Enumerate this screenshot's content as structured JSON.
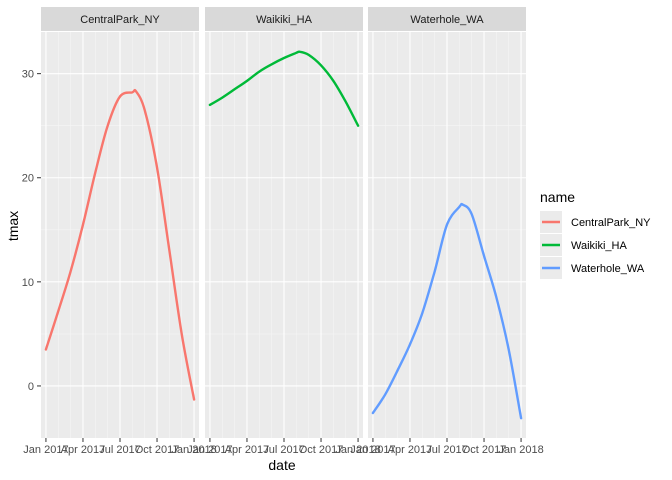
{
  "chart_data": {
    "type": "line",
    "xlabel": "date",
    "ylabel": "tmax",
    "ylim": [
      -5,
      34
    ],
    "y_ticks": [
      0,
      10,
      20,
      30
    ],
    "x_tick_labels": [
      "Jan 2017",
      "Apr 2017",
      "Jul 2017",
      "Oct 2017",
      "Jan 2018"
    ],
    "x_tick_months": [
      0,
      3,
      6,
      9,
      12
    ],
    "x_range_months": [
      -0.4,
      12.4
    ],
    "grid": true,
    "legend": {
      "title": "name",
      "placement": "right"
    },
    "facets": [
      "CentralPark_NY",
      "Waikiki_HA",
      "Waterhole_WA"
    ],
    "series": [
      {
        "name": "CentralPark_NY",
        "color": "#F8766D",
        "x_months": [
          0,
          1,
          2,
          3,
          4,
          5,
          6,
          7,
          7.3,
          8,
          9,
          10,
          11,
          12
        ],
        "values": [
          3.5,
          7.2,
          11.0,
          15.5,
          20.5,
          25.0,
          27.8,
          28.2,
          28.3,
          26.5,
          21.0,
          13.0,
          5.0,
          -1.3
        ]
      },
      {
        "name": "Waikiki_HA",
        "color": "#00BA38",
        "x_months": [
          0,
          1,
          2,
          3,
          4,
          5,
          6,
          7,
          7.3,
          8,
          9,
          10,
          11,
          12
        ],
        "values": [
          27.0,
          27.7,
          28.5,
          29.3,
          30.2,
          30.9,
          31.5,
          32.0,
          32.1,
          31.8,
          30.8,
          29.3,
          27.3,
          25.0
        ]
      },
      {
        "name": "Waterhole_WA",
        "color": "#619CFF",
        "x_months": [
          0,
          1,
          2,
          3,
          4,
          5,
          6,
          7,
          7.3,
          8,
          9,
          10,
          11,
          12
        ],
        "values": [
          -2.6,
          -0.8,
          1.5,
          4.0,
          7.0,
          11.0,
          15.5,
          17.2,
          17.4,
          16.5,
          12.5,
          8.5,
          3.5,
          -3.1
        ]
      }
    ]
  }
}
